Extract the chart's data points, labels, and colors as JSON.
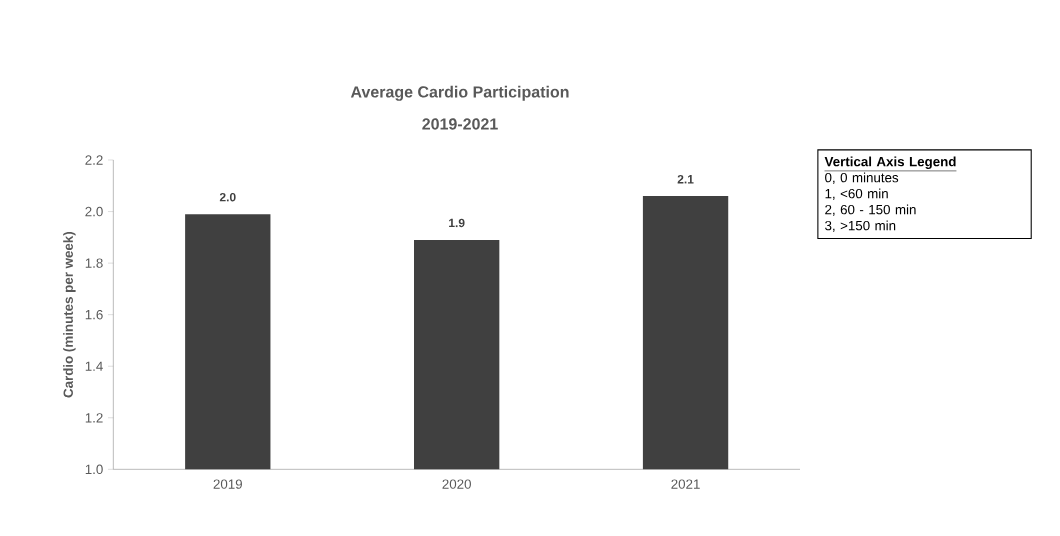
{
  "chart_data": {
    "type": "bar",
    "title": "Average Cardio Participation",
    "subtitle": "2019-2021",
    "ylabel": "Cardio (minutes per week)",
    "categories": [
      "2019",
      "2020",
      "2021"
    ],
    "values": [
      1.99,
      1.89,
      2.06
    ],
    "value_labels": [
      "2.0",
      "1.9",
      "2.1"
    ],
    "color": "#404040",
    "ylim": [
      1.0,
      2.2
    ],
    "yticks": [
      {
        "value": 1,
        "label": "1.0"
      },
      1.2,
      1.4,
      1.6,
      1.8,
      {
        "value": 2,
        "label": "2.0"
      },
      2.2
    ],
    "grid": false,
    "annotations": [
      "Vertical Axis Legend",
      "0, 0 minutes",
      "1, <60 min",
      "2, 60 - 150 min",
      "3, >150 min"
    ]
  }
}
